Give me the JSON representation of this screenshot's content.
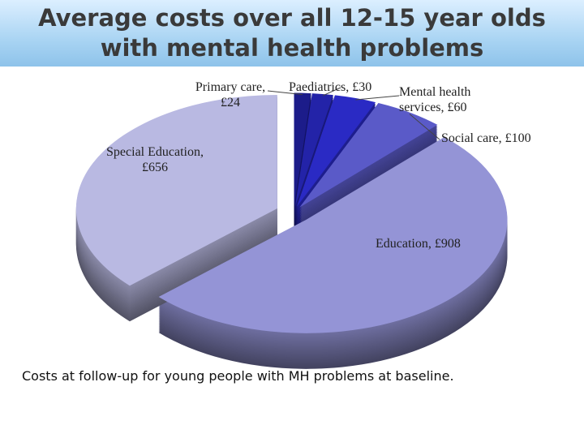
{
  "chart_data": {
    "type": "pie",
    "title": "Average costs over all 12-15 year olds with mental health problems",
    "value_labels": [
      "Primary care, £24",
      "Paediatrics, £30",
      "Mental health services, £60",
      "Social care, £100",
      "Education, £908",
      "Special Education, £656"
    ],
    "values": [
      24,
      30,
      60,
      100,
      908,
      656
    ],
    "colors": [
      "#1c1c8a",
      "#2323a8",
      "#2a2ac4",
      "#5a5ac8",
      "#9494d6",
      "#b9b9e2"
    ],
    "caption": "Costs at follow-up for young people with MH problems at baseline."
  }
}
